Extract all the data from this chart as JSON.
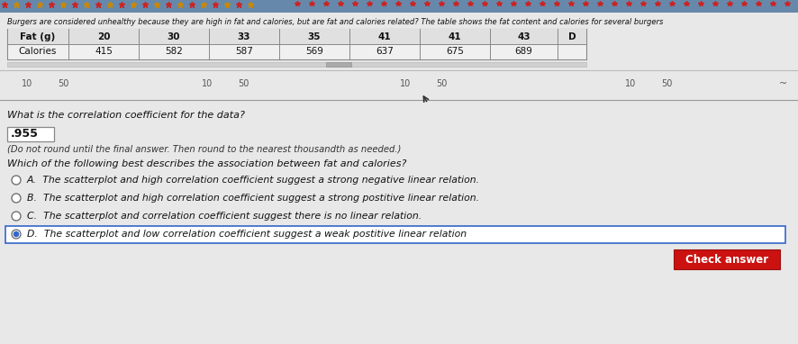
{
  "bg_color": "#c8c8c8",
  "content_bg": "#e8e8e8",
  "title_text": "Burgers are considered unhealthy because they are high in fat and calories, but are fat and calories related? The table shows the fat content and calories for several burgers",
  "table_headers": [
    "Fat (g)",
    "20",
    "30",
    "33",
    "35",
    "41",
    "41",
    "43",
    "D"
  ],
  "table_row2": [
    "Calories",
    "415",
    "582",
    "587",
    "569",
    "637",
    "675",
    "689",
    ""
  ],
  "axis_labels": [
    "10",
    "50",
    "10",
    "50",
    "10",
    "50",
    "10",
    "50"
  ],
  "axis_positions": [
    30,
    70,
    230,
    270,
    450,
    490,
    700,
    740
  ],
  "question1": "What is the correlation coefficient for the data?",
  "answer_box_text": ".955",
  "answer_note": "(Do not round until the final answer. Then round to the nearest thousandth as needed.)",
  "question2": "Which of the following best describes the association between fat and calories?",
  "options": [
    "A.  The scatterplot and high correlation coefficient suggest a strong negative linear relation.",
    "B.  The scatterplot and high correlation coefficient suggest a strong postitive linear relation.",
    "C.  The scatterplot and correlation coefficient suggest there is no linear relation.",
    "D.  The scatterplot and low correlation coefficient suggest a weak postitive linear relation"
  ],
  "selected_option": 3,
  "button_text": "Check answer",
  "star_color_red": "#cc2222",
  "star_color_orange": "#cc8800",
  "table_bg": "#f0f0f0",
  "header_bg": "#d8d8d8",
  "answer_box_bg": "#ffffff",
  "line_color": "#aaaaaa",
  "text_dark": "#111111",
  "text_medium": "#333333",
  "selected_box_color": "#3366cc",
  "selected_dot_color": "#3366cc",
  "btn_color": "#cc1111",
  "btn_text_color": "#ffffff"
}
